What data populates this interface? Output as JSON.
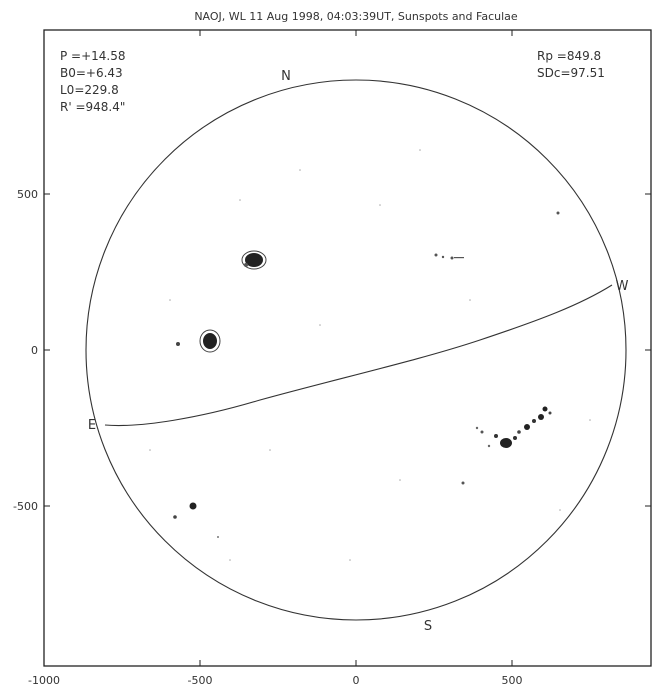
{
  "title": "NAOJ, WL 11 Aug 1998, 04:03:39UT, Sunspots and Faculae",
  "params_left": [
    "P =+14.58",
    "B0=+6.43",
    "L0=229.8",
    "R' =948.4\""
  ],
  "params_right": [
    "Rp =849.8",
    "SDc=97.51"
  ],
  "compass": {
    "north": "N",
    "south": "S",
    "east": "E",
    "west": "W"
  },
  "x_ticks": [
    "-1000",
    "-500",
    "0",
    "500"
  ],
  "y_ticks": [
    "500",
    "0",
    "-500"
  ],
  "sunspot_groups": [
    {
      "x": -330,
      "y": 285
    },
    {
      "x": -470,
      "y": 30
    },
    {
      "x": -510,
      "y": -500
    },
    {
      "x": 490,
      "y": -300
    },
    {
      "x": 560,
      "y": -250
    },
    {
      "x": 610,
      "y": -200
    }
  ]
}
